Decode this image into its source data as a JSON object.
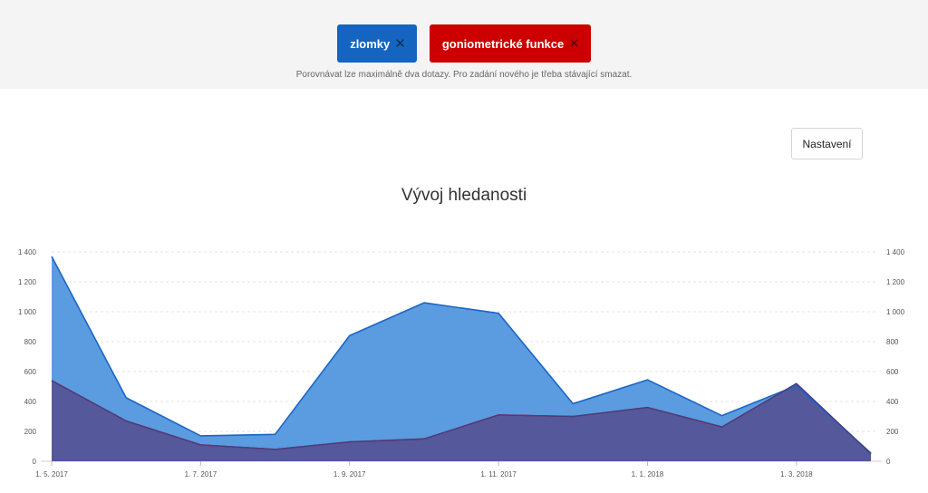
{
  "queries": [
    {
      "label": "zlomky",
      "color": "#1565c0",
      "remove_icon": "close-icon"
    },
    {
      "label": "goniometrické funkce",
      "color": "#cc0000",
      "remove_icon": "close-icon"
    }
  ],
  "note": "Porovnávat lze maximálně dva dotazy. Pro zadání nového je třeba stávající smazat.",
  "settings_label": "Nastavení",
  "chart_data": {
    "type": "area",
    "title": "Vývoj hledanosti",
    "x": [
      "2017-05-01",
      "2017-06-01",
      "2017-07-01",
      "2017-08-01",
      "2017-09-01",
      "2017-10-01",
      "2017-11-01",
      "2017-12-01",
      "2018-01-01",
      "2018-02-01",
      "2018-03-01",
      "2018-04-01"
    ],
    "x_tick_labels": [
      "1. 5. 2017",
      "1. 7. 2017",
      "1. 9. 2017",
      "1. 11. 2017",
      "1. 1. 2018",
      "1. 3. 2018"
    ],
    "y_tick_labels": [
      "0",
      "200",
      "400",
      "600",
      "800",
      "1 000",
      "1 200",
      "1 400"
    ],
    "ylim": [
      0,
      1400
    ],
    "grid": true,
    "series": [
      {
        "name": "zlomky",
        "color": "#1a66c8",
        "fill": "#5b9bdf",
        "values": [
          1370,
          425,
          170,
          180,
          840,
          1060,
          990,
          385,
          545,
          305,
          505,
          55
        ]
      },
      {
        "name": "goniometrické funkce",
        "color": "#cc0000",
        "fill": "#55589a",
        "values": [
          540,
          270,
          110,
          80,
          130,
          150,
          310,
          300,
          360,
          230,
          520,
          50
        ]
      }
    ]
  }
}
